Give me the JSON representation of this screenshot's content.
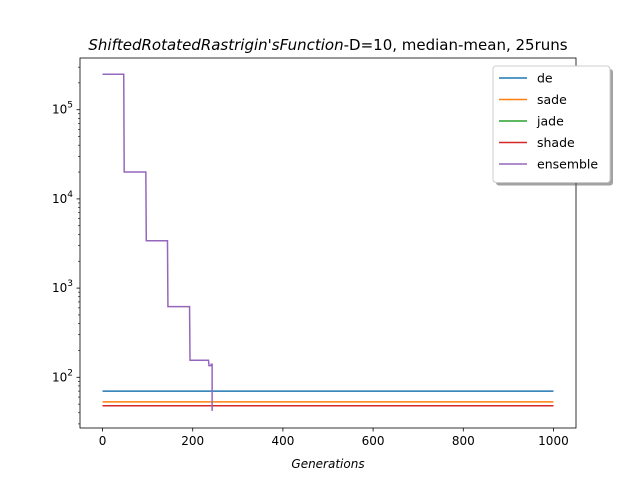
{
  "chart_data": {
    "type": "line",
    "title_italic": "ShiftedRotatedRastrigin'sFunction",
    "title_rest": "-D=10, median-mean, 25runs",
    "xlabel": "Generations",
    "ylabel": "",
    "yscale": "log",
    "xlim": [
      -50,
      1050
    ],
    "ylim": [
      27,
      380000
    ],
    "xticks": [
      0,
      200,
      400,
      600,
      800,
      1000
    ],
    "xtick_labels": [
      "0",
      "200",
      "400",
      "600",
      "800",
      "1000"
    ],
    "yticks": [
      100,
      1000,
      10000,
      100000
    ],
    "ytick_bases": [
      "10",
      "10",
      "10",
      "10"
    ],
    "ytick_exps": [
      "2",
      "3",
      "4",
      "5"
    ],
    "grid": false,
    "legend_position": "top-right",
    "series": [
      {
        "name": "de",
        "color": "#1f77b4",
        "points": [
          [
            0,
            70
          ],
          [
            1000,
            70
          ]
        ]
      },
      {
        "name": "sade",
        "color": "#ff7f0e",
        "points": [
          [
            0,
            53
          ],
          [
            1000,
            53
          ]
        ]
      },
      {
        "name": "jade",
        "color": "#2ca02c",
        "points": [
          [
            0,
            48
          ],
          [
            1000,
            48
          ]
        ]
      },
      {
        "name": "shade",
        "color": "#d62728",
        "points": [
          [
            0,
            48
          ],
          [
            1000,
            48
          ]
        ]
      },
      {
        "name": "ensemble",
        "color": "#9467bd",
        "points": [
          [
            0,
            250000
          ],
          [
            47,
            250000
          ],
          [
            48,
            20000
          ],
          [
            96,
            20000
          ],
          [
            97,
            3400
          ],
          [
            144,
            3400
          ],
          [
            145,
            620
          ],
          [
            193,
            620
          ],
          [
            194,
            155
          ],
          [
            235,
            155
          ],
          [
            236,
            135
          ],
          [
            241,
            135
          ],
          [
            241,
            140
          ],
          [
            243,
            140
          ],
          [
            243,
            42
          ]
        ]
      }
    ]
  }
}
